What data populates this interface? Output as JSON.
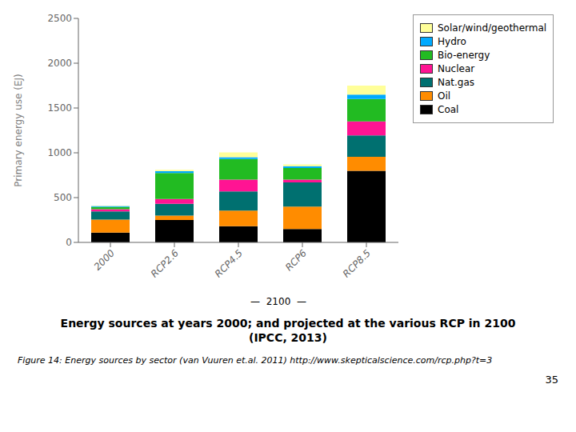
{
  "chart_data": {
    "type": "bar",
    "stacked": true,
    "title": "Energy sources at years 2000; and projected at the various RCP in 2100",
    "subtitle": "(IPCC, 2013)",
    "ylabel": "Primary energy use (EJ)",
    "categories": [
      "2000",
      "RCP2.6",
      "RCP4.5",
      "RCP6",
      "RCP8.5"
    ],
    "series": [
      {
        "name": "Coal",
        "color": "#000000",
        "values": [
          110,
          250,
          180,
          150,
          800
        ]
      },
      {
        "name": "Oil",
        "color": "#FF8C00",
        "values": [
          145,
          50,
          175,
          250,
          155
        ]
      },
      {
        "name": "Nat.gas",
        "color": "#007070",
        "values": [
          90,
          130,
          215,
          270,
          240
        ]
      },
      {
        "name": "Nuclear",
        "color": "#FF1493",
        "values": [
          25,
          55,
          130,
          30,
          155
        ]
      },
      {
        "name": "Bio-energy",
        "color": "#22BB22",
        "values": [
          25,
          290,
          230,
          130,
          250
        ]
      },
      {
        "name": "Hydro",
        "color": "#00AAFF",
        "values": [
          12,
          20,
          20,
          20,
          50
        ]
      },
      {
        "name": "Solar/wind/geothermal",
        "color": "#FFFF99",
        "values": [
          3,
          15,
          55,
          20,
          100
        ]
      }
    ],
    "ylim": [
      0,
      2500
    ],
    "yticks": [
      0,
      500,
      1000,
      1500,
      2000,
      2500
    ],
    "grid": false,
    "legend": "right",
    "annotations": [
      "—  2100  —",
      "Figure 14: Energy sources by sector (van Vuuren et.al. 2011)",
      "http://www.skepticalscience.com/rcp.php?t=3",
      "35"
    ]
  }
}
